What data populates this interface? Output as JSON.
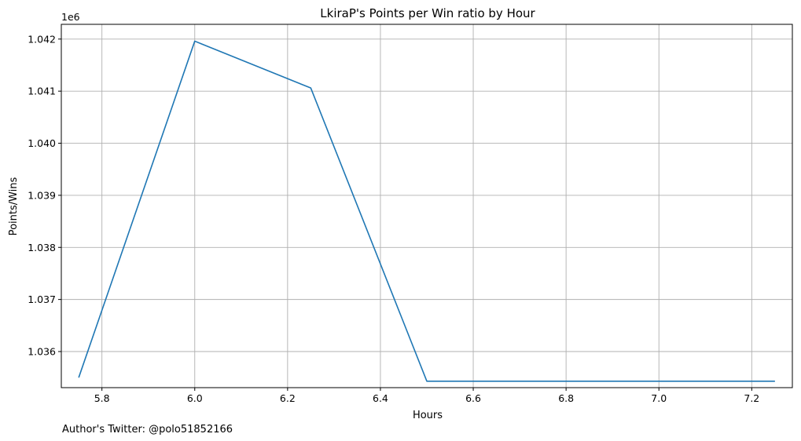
{
  "chart_data": {
    "type": "line",
    "title": "LkiraP's Points per Win ratio by Hour",
    "xlabel": "Hours",
    "ylabel": "Points/Wins",
    "offset_text": "1e6",
    "x": [
      5.75,
      6.0,
      6.25,
      6.5,
      6.75,
      7.0,
      7.25
    ],
    "series": [
      {
        "values": [
          1035500,
          1041960,
          1041060,
          1035430,
          1035430,
          1035430,
          1035430
        ],
        "color": "#1f77b4"
      }
    ],
    "xlim": [
      5.7125,
      7.2875
    ],
    "ylim": [
      1035307,
      1042283
    ],
    "xticks": [
      5.8,
      6.0,
      6.2,
      6.4,
      6.6,
      6.8,
      7.0,
      7.2
    ],
    "xtick_labels": [
      "5.8",
      "6.0",
      "6.2",
      "6.4",
      "6.6",
      "6.8",
      "7.0",
      "7.2"
    ],
    "yticks": [
      1036000,
      1037000,
      1038000,
      1039000,
      1040000,
      1041000,
      1042000
    ],
    "ytick_labels": [
      "1.036",
      "1.037",
      "1.038",
      "1.039",
      "1.040",
      "1.041",
      "1.042"
    ],
    "grid": true,
    "legend": "none"
  },
  "footer": "Author's Twitter: @polo51852166"
}
